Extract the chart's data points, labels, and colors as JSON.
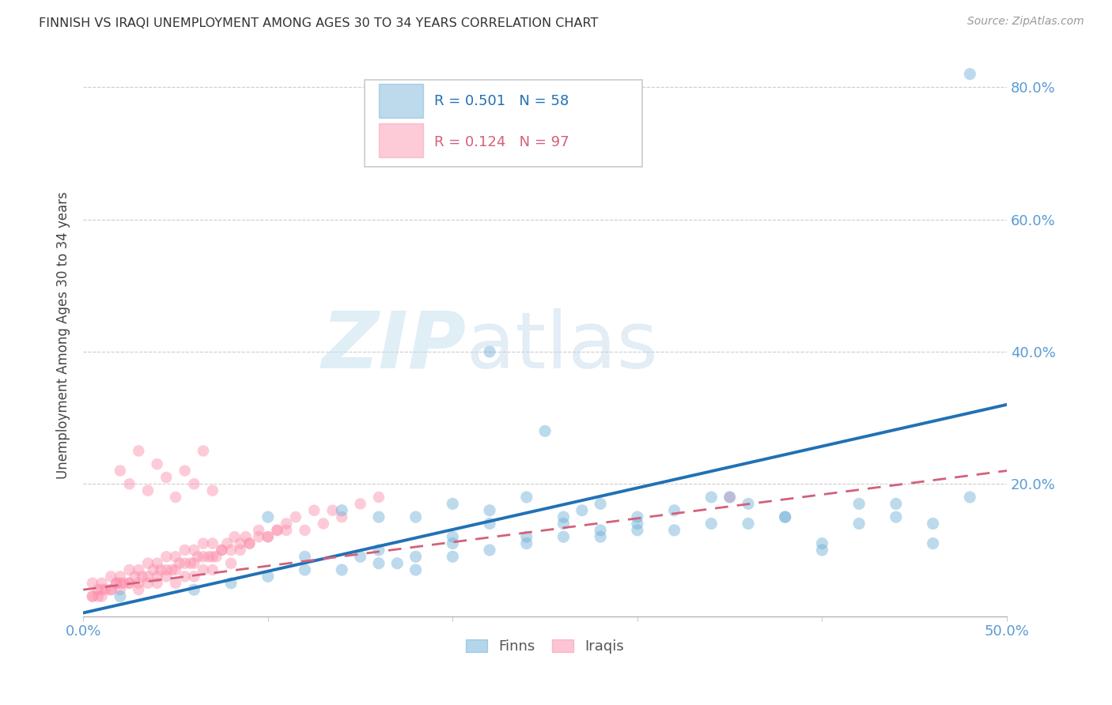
{
  "title": "FINNISH VS IRAQI UNEMPLOYMENT AMONG AGES 30 TO 34 YEARS CORRELATION CHART",
  "source": "Source: ZipAtlas.com",
  "ylabel": "Unemployment Among Ages 30 to 34 years",
  "xlim": [
    0.0,
    0.5
  ],
  "ylim": [
    0.0,
    0.85
  ],
  "yticks": [
    0.0,
    0.2,
    0.4,
    0.6,
    0.8
  ],
  "ytick_labels": [
    "",
    "20.0%",
    "40.0%",
    "60.0%",
    "80.0%"
  ],
  "legend_r_finn": "0.501",
  "legend_n_finn": "58",
  "legend_r_iraqi": "0.124",
  "legend_n_iraqi": "97",
  "finn_color": "#6baed6",
  "iraqi_color": "#fc8daa",
  "finn_line_color": "#2171b5",
  "iraqi_line_color": "#d4607a",
  "finn_line_x": [
    0.0,
    0.5
  ],
  "finn_line_y": [
    0.005,
    0.32
  ],
  "iraqi_line_x": [
    0.0,
    0.5
  ],
  "iraqi_line_y": [
    0.04,
    0.22
  ],
  "finn_scatter_x": [
    0.48,
    0.02,
    0.06,
    0.08,
    0.1,
    0.12,
    0.14,
    0.16,
    0.17,
    0.18,
    0.2,
    0.22,
    0.24,
    0.25,
    0.26,
    0.28,
    0.3,
    0.32,
    0.34,
    0.36,
    0.38,
    0.4,
    0.42,
    0.44,
    0.46,
    0.48,
    0.1,
    0.14,
    0.18,
    0.22,
    0.27,
    0.3,
    0.35,
    0.4,
    0.44,
    0.2,
    0.16,
    0.24,
    0.28,
    0.32,
    0.36,
    0.22,
    0.18,
    0.26,
    0.2,
    0.15,
    0.22,
    0.26,
    0.3,
    0.34,
    0.38,
    0.42,
    0.46,
    0.28,
    0.24,
    0.2,
    0.16,
    0.12
  ],
  "finn_scatter_y": [
    0.82,
    0.03,
    0.04,
    0.05,
    0.06,
    0.07,
    0.07,
    0.08,
    0.08,
    0.09,
    0.09,
    0.1,
    0.11,
    0.28,
    0.12,
    0.12,
    0.13,
    0.13,
    0.14,
    0.14,
    0.15,
    0.1,
    0.14,
    0.15,
    0.11,
    0.18,
    0.15,
    0.16,
    0.15,
    0.14,
    0.16,
    0.15,
    0.18,
    0.11,
    0.17,
    0.17,
    0.15,
    0.18,
    0.17,
    0.16,
    0.17,
    0.4,
    0.07,
    0.15,
    0.12,
    0.09,
    0.16,
    0.14,
    0.14,
    0.18,
    0.15,
    0.17,
    0.14,
    0.13,
    0.12,
    0.11,
    0.1,
    0.09
  ],
  "iraqi_scatter_x": [
    0.005,
    0.005,
    0.008,
    0.01,
    0.01,
    0.012,
    0.015,
    0.015,
    0.018,
    0.02,
    0.02,
    0.022,
    0.025,
    0.025,
    0.028,
    0.03,
    0.03,
    0.032,
    0.035,
    0.035,
    0.038,
    0.04,
    0.04,
    0.042,
    0.045,
    0.045,
    0.048,
    0.05,
    0.05,
    0.052,
    0.055,
    0.055,
    0.058,
    0.06,
    0.06,
    0.062,
    0.065,
    0.065,
    0.068,
    0.07,
    0.07,
    0.072,
    0.075,
    0.078,
    0.08,
    0.082,
    0.085,
    0.088,
    0.09,
    0.095,
    0.1,
    0.105,
    0.11,
    0.115,
    0.12,
    0.125,
    0.13,
    0.135,
    0.14,
    0.15,
    0.16,
    0.005,
    0.008,
    0.01,
    0.015,
    0.018,
    0.02,
    0.025,
    0.03,
    0.035,
    0.04,
    0.045,
    0.05,
    0.055,
    0.06,
    0.065,
    0.07,
    0.075,
    0.08,
    0.085,
    0.09,
    0.095,
    0.1,
    0.105,
    0.11,
    0.02,
    0.025,
    0.03,
    0.035,
    0.04,
    0.045,
    0.05,
    0.055,
    0.06,
    0.065,
    0.07,
    0.35
  ],
  "iraqi_scatter_y": [
    0.03,
    0.05,
    0.04,
    0.03,
    0.05,
    0.04,
    0.04,
    0.06,
    0.05,
    0.04,
    0.06,
    0.05,
    0.05,
    0.07,
    0.06,
    0.04,
    0.07,
    0.06,
    0.05,
    0.08,
    0.07,
    0.05,
    0.08,
    0.07,
    0.06,
    0.09,
    0.07,
    0.05,
    0.09,
    0.08,
    0.06,
    0.1,
    0.08,
    0.06,
    0.1,
    0.09,
    0.07,
    0.11,
    0.09,
    0.07,
    0.11,
    0.09,
    0.1,
    0.11,
    0.08,
    0.12,
    0.1,
    0.12,
    0.11,
    0.13,
    0.12,
    0.13,
    0.14,
    0.15,
    0.13,
    0.16,
    0.14,
    0.16,
    0.15,
    0.17,
    0.18,
    0.03,
    0.03,
    0.04,
    0.04,
    0.05,
    0.05,
    0.05,
    0.05,
    0.06,
    0.06,
    0.07,
    0.07,
    0.08,
    0.08,
    0.09,
    0.09,
    0.1,
    0.1,
    0.11,
    0.11,
    0.12,
    0.12,
    0.13,
    0.13,
    0.22,
    0.2,
    0.25,
    0.19,
    0.23,
    0.21,
    0.18,
    0.22,
    0.2,
    0.25,
    0.19,
    0.18
  ]
}
